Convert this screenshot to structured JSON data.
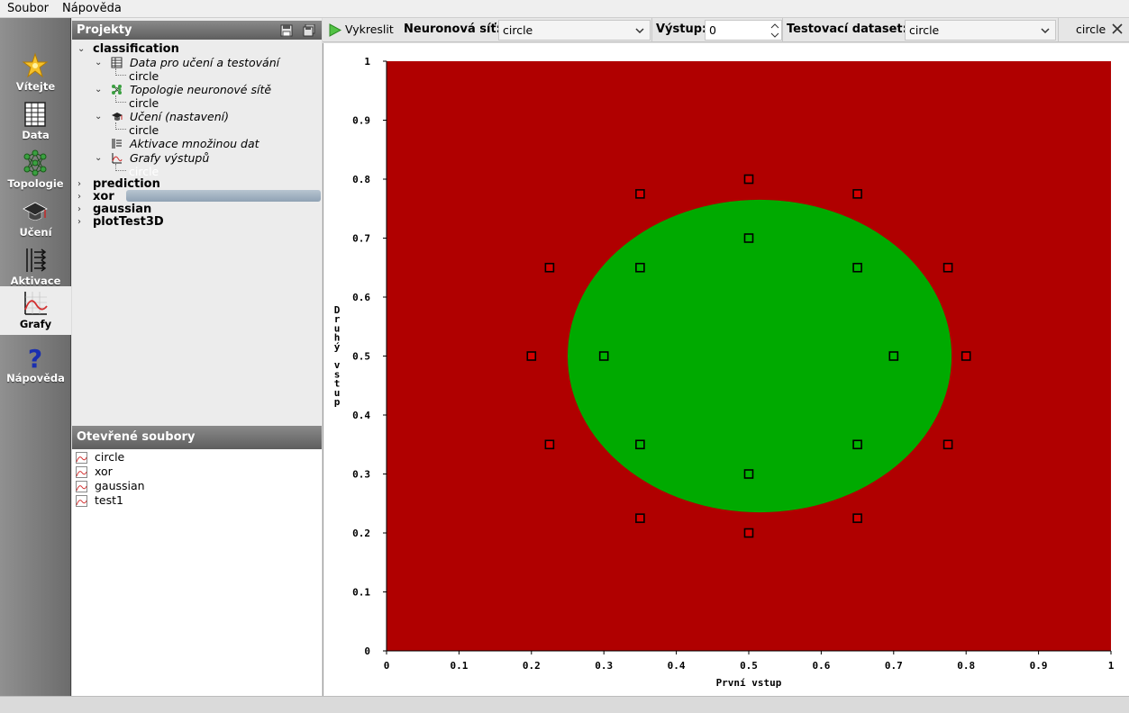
{
  "menu": {
    "items": [
      "Soubor",
      "Nápověda"
    ]
  },
  "dock": {
    "items": [
      {
        "label": "Vítejte",
        "icon": "welcome-star-icon"
      },
      {
        "label": "Data",
        "icon": "table-icon"
      },
      {
        "label": "Topologie",
        "icon": "network-icon"
      },
      {
        "label": "Učení",
        "icon": "graduation-cap-icon"
      },
      {
        "label": "Aktivace",
        "icon": "activation-icon"
      },
      {
        "label": "Grafy",
        "icon": "chart-icon"
      },
      {
        "label": "Nápověda",
        "icon": "question-icon"
      }
    ],
    "active": "Grafy"
  },
  "projects": {
    "title": "Projekty",
    "tree": [
      {
        "label": "classification"
      },
      {
        "label": "Data pro učení a testování"
      },
      {
        "label": "circle"
      },
      {
        "label": "Topologie neuronové sítě"
      },
      {
        "label": "circle"
      },
      {
        "label": "Učení (nastavení)"
      },
      {
        "label": "circle"
      },
      {
        "label": "Aktivace množinou dat"
      },
      {
        "label": "Grafy výstupů"
      },
      {
        "label": "circle"
      },
      {
        "label": "prediction"
      },
      {
        "label": "xor"
      },
      {
        "label": "gaussian"
      },
      {
        "label": "plotTest3D"
      }
    ]
  },
  "open_files": {
    "title": "Otevřené soubory",
    "files": [
      "circle",
      "xor",
      "gaussian",
      "test1"
    ]
  },
  "toolbar": {
    "draw_label": "Vykreslit",
    "network_label": "Neuronová síť:",
    "network_value": "circle",
    "output_label": "Výstup:",
    "output_value": "0",
    "dataset_label": "Testovací dataset:",
    "dataset_value": "circle",
    "tab_label": "circle"
  },
  "chart_data": {
    "type": "scatter",
    "xlabel": "První vstup",
    "ylabel": "Druhý vstup",
    "xlim": [
      0,
      1
    ],
    "ylim": [
      0,
      1
    ],
    "xticks": [
      "0",
      "0.1",
      "0.2",
      "0.3",
      "0.4",
      "0.5",
      "0.6",
      "0.7",
      "0.8",
      "0.9",
      "1"
    ],
    "yticks": [
      "0",
      "0.1",
      "0.2",
      "0.3",
      "0.4",
      "0.5",
      "0.6",
      "0.7",
      "0.8",
      "0.9",
      "1"
    ],
    "background_color": "#b00000",
    "region_color": "#00aa00",
    "region": {
      "center_x": 0.515,
      "center_y": 0.5,
      "radius_x": 0.265,
      "radius_y": 0.265
    },
    "series": [
      {
        "class": "outside",
        "color": "#d40000",
        "points": [
          [
            0.5,
            0.8
          ],
          [
            0.35,
            0.775
          ],
          [
            0.65,
            0.775
          ],
          [
            0.225,
            0.65
          ],
          [
            0.775,
            0.65
          ],
          [
            0.2,
            0.5
          ],
          [
            0.8,
            0.5
          ],
          [
            0.225,
            0.35
          ],
          [
            0.775,
            0.35
          ],
          [
            0.35,
            0.225
          ],
          [
            0.65,
            0.225
          ],
          [
            0.5,
            0.2
          ]
        ]
      },
      {
        "class": "inside",
        "color": "#00b400",
        "points": [
          [
            0.5,
            0.7
          ],
          [
            0.35,
            0.65
          ],
          [
            0.65,
            0.65
          ],
          [
            0.3,
            0.5
          ],
          [
            0.7,
            0.5
          ],
          [
            0.35,
            0.35
          ],
          [
            0.65,
            0.35
          ],
          [
            0.5,
            0.3
          ]
        ]
      }
    ]
  }
}
